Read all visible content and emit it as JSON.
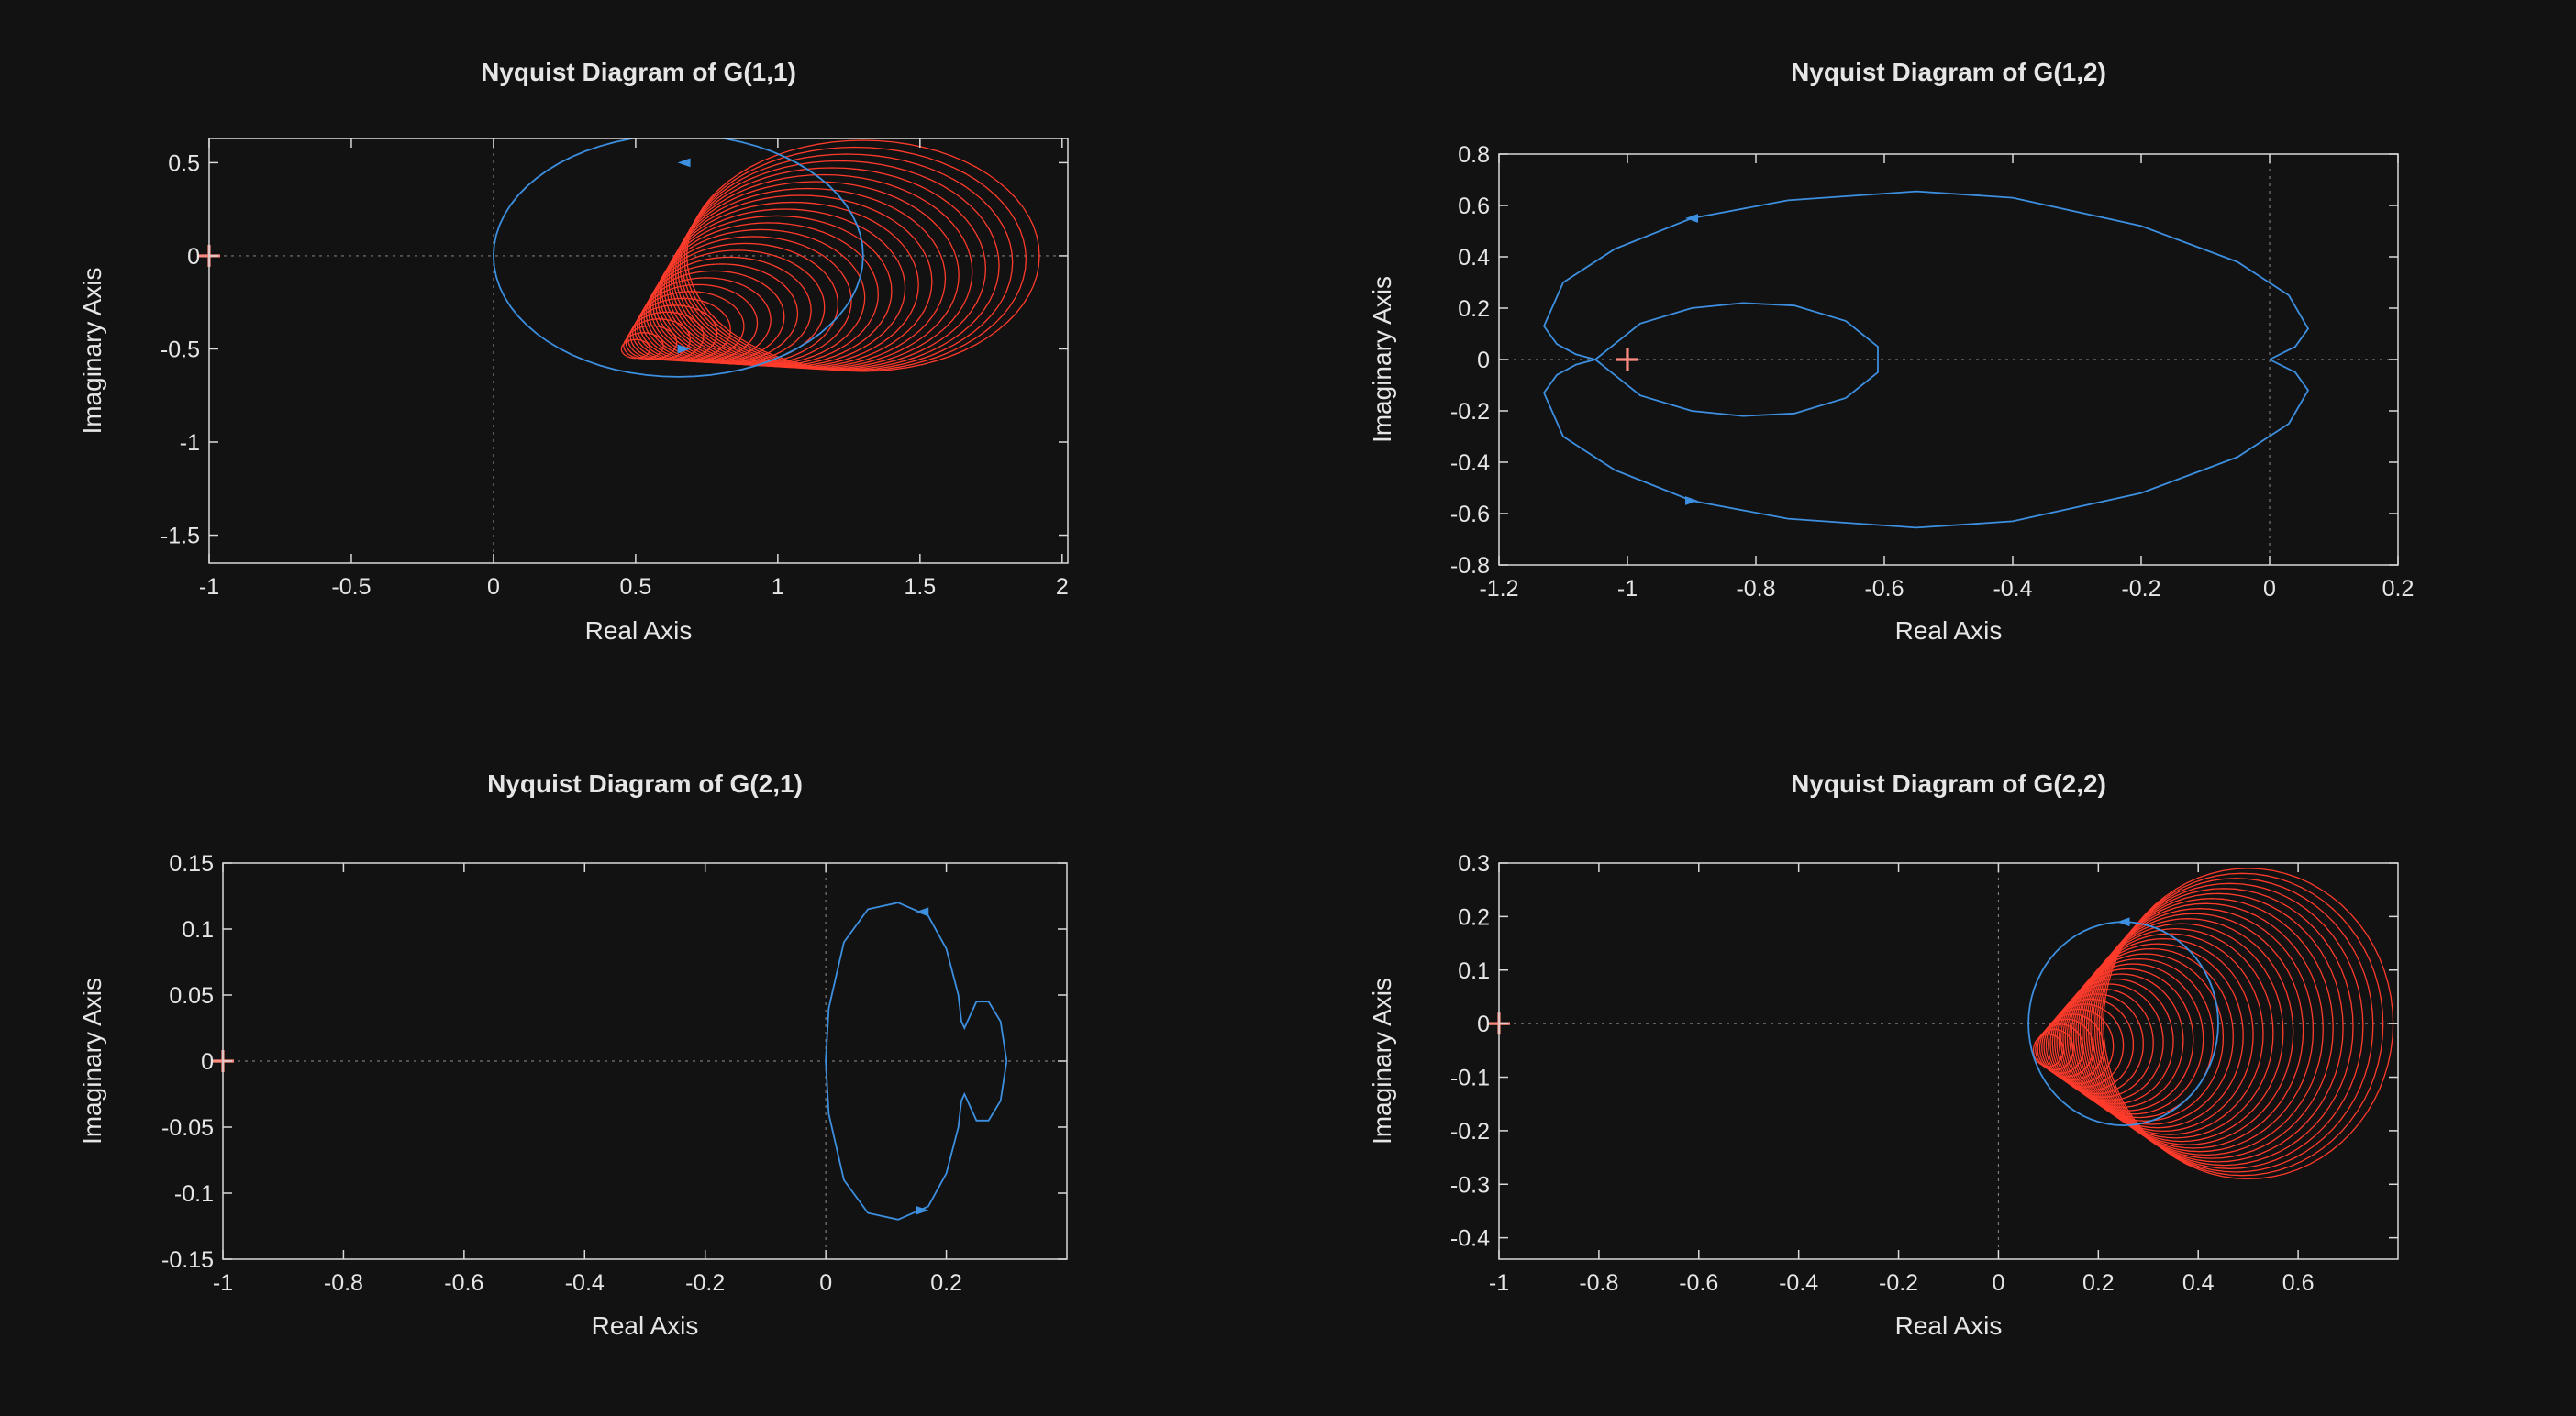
{
  "colors": {
    "background": "#121212",
    "response": "#3d8fe0",
    "grid_curves": "#ff3b2b",
    "critical_point": "#ff8a80",
    "text": "#e6e6e6"
  },
  "chart_data": [
    {
      "type": "line",
      "subplot": "G(1,1)",
      "title": "Nyquist Diagram of G(1,1)",
      "xlabel": "Real Axis",
      "ylabel": "Imaginary Axis",
      "xlim": [
        -1,
        2.02
      ],
      "ylim": [
        -1.65,
        0.63
      ],
      "xticks": [
        -1,
        -0.5,
        0,
        0.5,
        1,
        1.5,
        2
      ],
      "xtick_labels": [
        "-1",
        "-0.5",
        "0",
        "0.5",
        "1",
        "1.5",
        "2"
      ],
      "yticks": [
        -1.5,
        -1,
        -0.5,
        0,
        0.5
      ],
      "ytick_labels": [
        "-1.5",
        "-1",
        "-0.5",
        "0",
        "0.5"
      ],
      "critical_point": [
        -1,
        0
      ],
      "response": {
        "shape": "circle",
        "center": [
          0.65,
          0
        ],
        "radius": 0.65,
        "arrows": [
          {
            "x": 0.67,
            "y": 0.5
          },
          {
            "x": 0.67,
            "y": -0.5
          }
        ]
      },
      "overlay_circle_family": {
        "color": "red",
        "center_start": [
          0.5,
          -0.5
        ],
        "center_end": [
          1.3,
          0
        ],
        "radius_start": 0.05,
        "radius_end": 0.62,
        "count": 30
      }
    },
    {
      "type": "line",
      "subplot": "G(1,2)",
      "title": "Nyquist Diagram of G(1,2)",
      "xlabel": "Real Axis",
      "ylabel": "Imaginary Axis",
      "xlim": [
        -1.2,
        0.2
      ],
      "ylim": [
        -0.8,
        0.8
      ],
      "xticks": [
        -1.2,
        -1,
        -0.8,
        -0.6,
        -0.4,
        -0.2,
        0,
        0.2
      ],
      "xtick_labels": [
        "-1.2",
        "-1",
        "-0.8",
        "-0.6",
        "-0.4",
        "-0.2",
        "0",
        "0.2"
      ],
      "yticks": [
        -0.8,
        -0.6,
        -0.4,
        -0.2,
        0,
        0.2,
        0.4,
        0.6,
        0.8
      ],
      "ytick_labels": [
        "-0.8",
        "-0.6",
        "-0.4",
        "-0.2",
        "0",
        "0.2",
        "0.4",
        "0.6",
        "0.8"
      ],
      "critical_point": [
        -1,
        0
      ],
      "response": {
        "upper_outer": [
          [
            0,
            0
          ],
          [
            0.04,
            0.05
          ],
          [
            0.06,
            0.12
          ],
          [
            0.03,
            0.25
          ],
          [
            -0.05,
            0.38
          ],
          [
            -0.2,
            0.52
          ],
          [
            -0.4,
            0.63
          ],
          [
            -0.55,
            0.655
          ],
          [
            -0.75,
            0.62
          ],
          [
            -0.9,
            0.55
          ],
          [
            -1.02,
            0.43
          ],
          [
            -1.1,
            0.3
          ],
          [
            -1.13,
            0.13
          ],
          [
            -1.11,
            0.06
          ],
          [
            -1.08,
            0.02
          ],
          [
            -1.05,
            0
          ]
        ],
        "upper_inner": [
          [
            -1.05,
            0
          ],
          [
            -1.02,
            0.06
          ],
          [
            -0.98,
            0.14
          ],
          [
            -0.9,
            0.2
          ],
          [
            -0.82,
            0.22
          ],
          [
            -0.74,
            0.21
          ],
          [
            -0.66,
            0.15
          ],
          [
            -0.61,
            0.05
          ],
          [
            -0.61,
            0
          ]
        ],
        "arrows": [
          {
            "x": -0.9,
            "y": 0.55
          },
          {
            "x": -0.9,
            "y": -0.55
          }
        ]
      }
    },
    {
      "type": "line",
      "subplot": "G(2,1)",
      "title": "Nyquist Diagram of G(2,1)",
      "xlabel": "Real Axis",
      "ylabel": "Imaginary Axis",
      "xlim": [
        -1,
        0.4
      ],
      "ylim": [
        -0.15,
        0.15
      ],
      "xticks": [
        -1,
        -0.8,
        -0.6,
        -0.4,
        -0.2,
        0,
        0.2
      ],
      "xtick_labels": [
        "-1",
        "-0.8",
        "-0.6",
        "-0.4",
        "-0.2",
        "0",
        "0.2"
      ],
      "yticks": [
        -0.15,
        -0.1,
        -0.05,
        0,
        0.05,
        0.1,
        0.15
      ],
      "ytick_labels": [
        "-0.15",
        "-0.1",
        "-0.05",
        "0",
        "0.05",
        "0.1",
        "0.15"
      ],
      "critical_point": [
        -1,
        0
      ],
      "response": {
        "upper": [
          [
            0,
            0
          ],
          [
            0.005,
            0.04
          ],
          [
            0.03,
            0.09
          ],
          [
            0.07,
            0.115
          ],
          [
            0.12,
            0.12
          ],
          [
            0.17,
            0.11
          ],
          [
            0.2,
            0.085
          ],
          [
            0.22,
            0.05
          ],
          [
            0.225,
            0.03
          ],
          [
            0.23,
            0.025
          ],
          [
            0.25,
            0.045
          ],
          [
            0.27,
            0.045
          ],
          [
            0.29,
            0.03
          ],
          [
            0.3,
            0.0
          ]
        ],
        "arrows": [
          {
            "x": 0.16,
            "y": 0.113
          },
          {
            "x": 0.16,
            "y": -0.113
          }
        ]
      }
    },
    {
      "type": "line",
      "subplot": "G(2,2)",
      "title": "Nyquist Diagram of G(2,2)",
      "xlabel": "Real Axis",
      "ylabel": "Imaginary Axis",
      "xlim": [
        -1,
        0.8
      ],
      "ylim": [
        -0.44,
        0.3
      ],
      "xticks": [
        -1,
        -0.8,
        -0.6,
        -0.4,
        -0.2,
        0,
        0.2,
        0.4,
        0.6
      ],
      "xtick_labels": [
        "-1",
        "-0.8",
        "-0.6",
        "-0.4",
        "-0.2",
        "0",
        "0.2",
        "0.4",
        "0.6"
      ],
      "yticks": [
        -0.4,
        -0.3,
        -0.2,
        -0.1,
        0,
        0.1,
        0.2,
        0.3
      ],
      "ytick_labels": [
        "-0.4",
        "-0.3",
        "-0.2",
        "-0.1",
        "0",
        "0.1",
        "0.2",
        "0.3"
      ],
      "critical_point": [
        -1,
        0
      ],
      "response": {
        "shape": "circle",
        "center": [
          0.25,
          0
        ],
        "radius": 0.19,
        "arrows": [
          {
            "x": 0.25,
            "y": 0.19
          }
        ]
      },
      "overlay_circle_family": {
        "color": "red",
        "center_start": [
          0.1,
          -0.05
        ],
        "center_end": [
          0.5,
          0
        ],
        "radius_start": 0.03,
        "radius_end": 0.29,
        "count": 34
      }
    }
  ]
}
